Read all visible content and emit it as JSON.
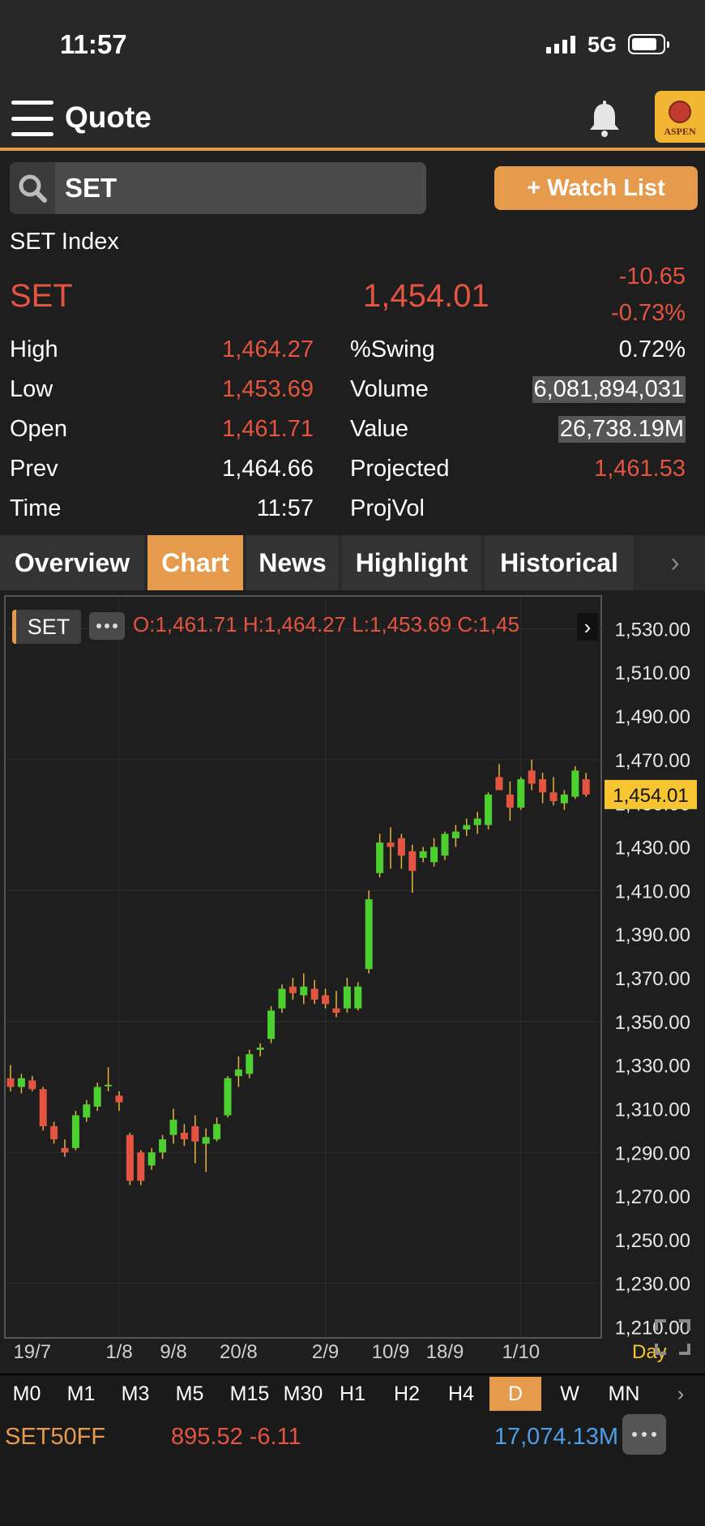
{
  "status": {
    "time": "11:57",
    "network": "5G"
  },
  "header": {
    "title": "Quote",
    "logo_text": "ASPEN"
  },
  "search": {
    "value": "SET",
    "watch_label": "+ Watch List"
  },
  "quote": {
    "name": "SET Index",
    "symbol": "SET",
    "last": "1,454.01",
    "change": "-10.65",
    "change_pct": "-0.73%",
    "left_rows": [
      {
        "label": "High",
        "value": "1,464.27",
        "red": true
      },
      {
        "label": "Low",
        "value": "1,453.69",
        "red": true
      },
      {
        "label": "Open",
        "value": "1,461.71",
        "red": true
      },
      {
        "label": "Prev",
        "value": "1,464.66",
        "red": false
      },
      {
        "label": "Time",
        "value": "11:57",
        "red": false
      }
    ],
    "right_rows": [
      {
        "label": "%Swing",
        "value": "0.72%",
        "red": false,
        "hl": false
      },
      {
        "label": "Volume",
        "value": "6,081,894,031",
        "red": false,
        "hl": true
      },
      {
        "label": "Value",
        "value": "26,738.19M",
        "red": false,
        "hl": true
      },
      {
        "label": "Projected",
        "value": "1,461.53",
        "red": true,
        "hl": false
      },
      {
        "label": "ProjVol",
        "value": "",
        "red": false,
        "hl": false
      }
    ]
  },
  "tabs": [
    "Overview",
    "Chart",
    "News",
    "Highlight",
    "Historical"
  ],
  "active_tab": "Chart",
  "chart_header": {
    "symbol": "SET",
    "ohlc": "O:1,461.71  H:1,464.27  L:1,453.69  C:1,45"
  },
  "chart_data": {
    "type": "candlestick",
    "symbol": "SET",
    "interval": "Day",
    "ylim": [
      1205,
      1545
    ],
    "y_ticks": [
      "1,530.00",
      "1,510.00",
      "1,490.00",
      "1,470.00",
      "1,450.00",
      "1,430.00",
      "1,410.00",
      "1,390.00",
      "1,370.00",
      "1,350.00",
      "1,330.00",
      "1,310.00",
      "1,290.00",
      "1,270.00",
      "1,250.00",
      "1,230.00",
      "1,210.00"
    ],
    "y_tick_values": [
      1530,
      1510,
      1490,
      1470,
      1450,
      1430,
      1410,
      1390,
      1370,
      1350,
      1330,
      1310,
      1290,
      1270,
      1250,
      1230,
      1210
    ],
    "x_labels": [
      "19/7",
      "1/8",
      "9/8",
      "20/8",
      "2/9",
      "10/9",
      "18/9",
      "1/10"
    ],
    "x_label_index": [
      2,
      10,
      15,
      21,
      29,
      35,
      40,
      47
    ],
    "last_price_label": "1,454.01",
    "last_price": 1454.01,
    "up_color": "#4cd02f",
    "down_color": "#e55440",
    "candles": [
      {
        "o": 1324,
        "h": 1330,
        "l": 1318,
        "c": 1320
      },
      {
        "o": 1320,
        "h": 1326,
        "l": 1317,
        "c": 1324
      },
      {
        "o": 1323,
        "h": 1325,
        "l": 1318,
        "c": 1319
      },
      {
        "o": 1319,
        "h": 1320,
        "l": 1300,
        "c": 1302
      },
      {
        "o": 1302,
        "h": 1304,
        "l": 1294,
        "c": 1296
      },
      {
        "o": 1292,
        "h": 1296,
        "l": 1288,
        "c": 1290
      },
      {
        "o": 1292,
        "h": 1309,
        "l": 1291,
        "c": 1307
      },
      {
        "o": 1306,
        "h": 1314,
        "l": 1304,
        "c": 1312
      },
      {
        "o": 1311,
        "h": 1322,
        "l": 1309,
        "c": 1320
      },
      {
        "o": 1321,
        "h": 1329,
        "l": 1318,
        "c": 1321
      },
      {
        "o": 1316,
        "h": 1318,
        "l": 1309,
        "c": 1313
      },
      {
        "o": 1298,
        "h": 1299,
        "l": 1275,
        "c": 1277
      },
      {
        "o": 1290,
        "h": 1291,
        "l": 1275,
        "c": 1277
      },
      {
        "o": 1284,
        "h": 1292,
        "l": 1282,
        "c": 1290
      },
      {
        "o": 1290,
        "h": 1298,
        "l": 1287,
        "c": 1296
      },
      {
        "o": 1298,
        "h": 1310,
        "l": 1294,
        "c": 1305
      },
      {
        "o": 1299,
        "h": 1303,
        "l": 1293,
        "c": 1296
      },
      {
        "o": 1302,
        "h": 1307,
        "l": 1285,
        "c": 1295
      },
      {
        "o": 1294,
        "h": 1301,
        "l": 1281,
        "c": 1297
      },
      {
        "o": 1296,
        "h": 1306,
        "l": 1295,
        "c": 1303
      },
      {
        "o": 1307,
        "h": 1325,
        "l": 1306,
        "c": 1324
      },
      {
        "o": 1325,
        "h": 1334,
        "l": 1320,
        "c": 1328
      },
      {
        "o": 1326,
        "h": 1337,
        "l": 1324,
        "c": 1335
      },
      {
        "o": 1337,
        "h": 1340,
        "l": 1334,
        "c": 1338
      },
      {
        "o": 1342,
        "h": 1357,
        "l": 1340,
        "c": 1355
      },
      {
        "o": 1356,
        "h": 1367,
        "l": 1354,
        "c": 1365
      },
      {
        "o": 1366,
        "h": 1370,
        "l": 1360,
        "c": 1363
      },
      {
        "o": 1362,
        "h": 1372,
        "l": 1358,
        "c": 1366
      },
      {
        "o": 1365,
        "h": 1369,
        "l": 1358,
        "c": 1360
      },
      {
        "o": 1362,
        "h": 1365,
        "l": 1356,
        "c": 1358
      },
      {
        "o": 1356,
        "h": 1364,
        "l": 1352,
        "c": 1354
      },
      {
        "o": 1356,
        "h": 1370,
        "l": 1354,
        "c": 1366
      },
      {
        "o": 1356,
        "h": 1368,
        "l": 1355,
        "c": 1366
      },
      {
        "o": 1374,
        "h": 1410,
        "l": 1372,
        "c": 1406
      },
      {
        "o": 1418,
        "h": 1436,
        "l": 1416,
        "c": 1432
      },
      {
        "o": 1432,
        "h": 1439,
        "l": 1420,
        "c": 1430
      },
      {
        "o": 1434,
        "h": 1436,
        "l": 1420,
        "c": 1426
      },
      {
        "o": 1428,
        "h": 1431,
        "l": 1409,
        "c": 1419
      },
      {
        "o": 1425,
        "h": 1430,
        "l": 1423,
        "c": 1428
      },
      {
        "o": 1423,
        "h": 1434,
        "l": 1421,
        "c": 1430
      },
      {
        "o": 1426,
        "h": 1437,
        "l": 1424,
        "c": 1436
      },
      {
        "o": 1434,
        "h": 1440,
        "l": 1430,
        "c": 1437
      },
      {
        "o": 1438,
        "h": 1443,
        "l": 1435,
        "c": 1440
      },
      {
        "o": 1440,
        "h": 1446,
        "l": 1436,
        "c": 1443
      },
      {
        "o": 1440,
        "h": 1455,
        "l": 1438,
        "c": 1454
      },
      {
        "o": 1462,
        "h": 1468,
        "l": 1456,
        "c": 1456
      },
      {
        "o": 1454,
        "h": 1460,
        "l": 1442,
        "c": 1448
      },
      {
        "o": 1448,
        "h": 1462,
        "l": 1447,
        "c": 1461
      },
      {
        "o": 1465,
        "h": 1470,
        "l": 1456,
        "c": 1459
      },
      {
        "o": 1461,
        "h": 1464,
        "l": 1450,
        "c": 1455
      },
      {
        "o": 1455,
        "h": 1462,
        "l": 1449,
        "c": 1451
      },
      {
        "o": 1450,
        "h": 1456,
        "l": 1447,
        "c": 1454
      },
      {
        "o": 1453,
        "h": 1467,
        "l": 1452,
        "c": 1465
      },
      {
        "o": 1461,
        "h": 1464,
        "l": 1453,
        "c": 1454
      }
    ]
  },
  "chart_controls": {
    "interval_label": "Day"
  },
  "timeframes": [
    "M0",
    "M1",
    "M3",
    "M5",
    "M15",
    "M30",
    "H1",
    "H2",
    "H4",
    "D",
    "W",
    "MN"
  ],
  "active_timeframe": "D",
  "ticker": {
    "symbol": "SET50FF",
    "value": "895.52",
    "change": "-6.11",
    "volume": "17,074.13M"
  }
}
